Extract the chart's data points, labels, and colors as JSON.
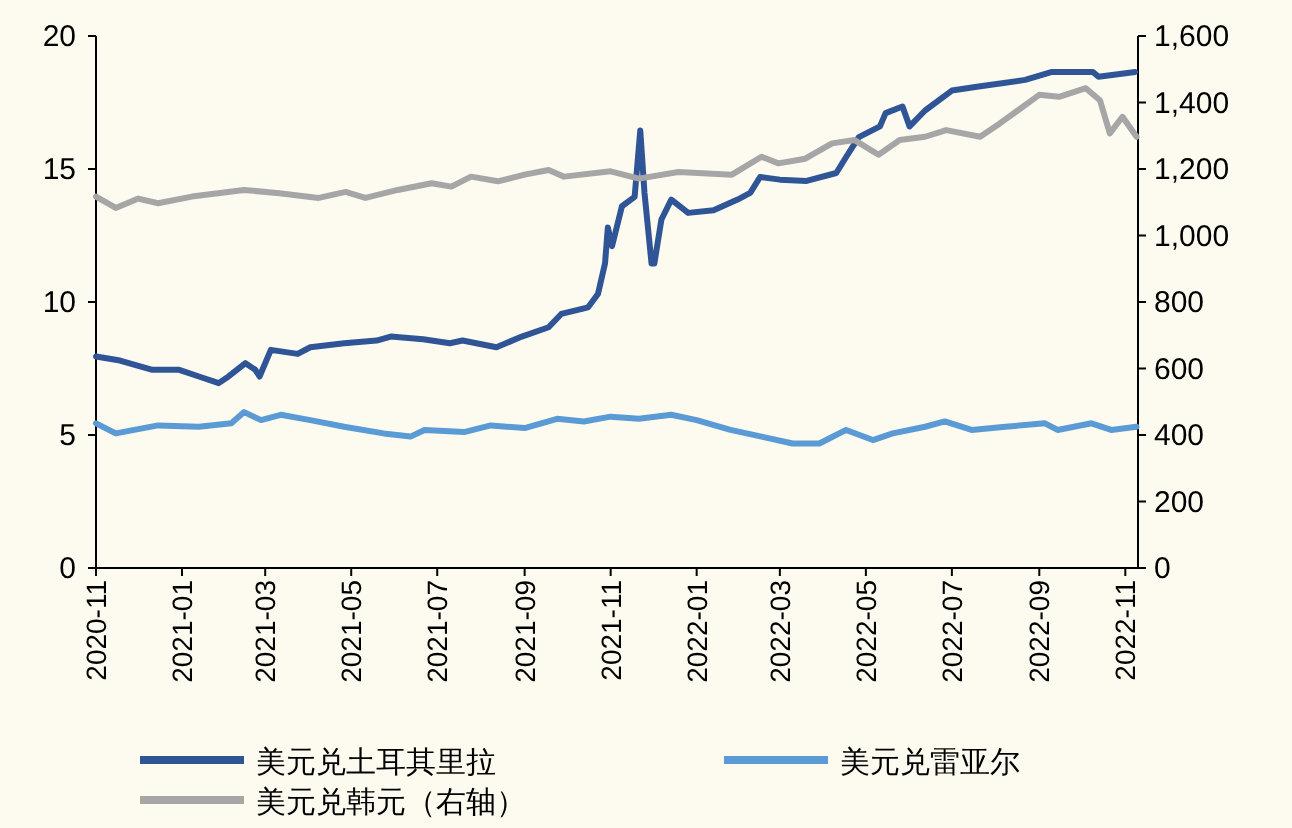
{
  "chart_data": {
    "type": "line",
    "xlim": [
      "2020-11-01",
      "2022-11-10"
    ],
    "xticks": [
      "2020-11",
      "2021-01",
      "2021-03",
      "2021-05",
      "2021-07",
      "2021-09",
      "2021-11",
      "2022-01",
      "2022-03",
      "2022-05",
      "2022-07",
      "2022-09",
      "2022-11"
    ],
    "ylim": [
      0,
      20
    ],
    "yticks": [
      0,
      5,
      10,
      15,
      20
    ],
    "y2lim": [
      0,
      1600
    ],
    "y2ticks": [
      0,
      200,
      400,
      600,
      800,
      {
        "value": 1000,
        "label": "1,000"
      },
      {
        "value": 1200,
        "label": "1,200"
      },
      {
        "value": 1400,
        "label": "1,400"
      },
      {
        "value": 1600,
        "label": "1,600"
      }
    ],
    "legend": "bottom",
    "series": [
      {
        "name": "美元兑土耳其里拉",
        "color": "#2f5597",
        "x": [
          "2020-11-01",
          "2020-11-18",
          "2020-12-11",
          "2020-12-30",
          "2021-01-13",
          "2021-01-27",
          "2021-02-03",
          "2021-02-15",
          "2021-02-22",
          "2021-02-25",
          "2021-03-05",
          "2021-03-24",
          "2021-04-02",
          "2021-04-26",
          "2021-05-19",
          "2021-05-29",
          "2021-06-21",
          "2021-07-10",
          "2021-07-19",
          "2021-08-12",
          "2021-08-30",
          "2021-09-18",
          "2021-09-27",
          "2021-10-16",
          "2021-10-23",
          "2021-10-28",
          "2021-10-30",
          "2021-11-02",
          "2021-11-09",
          "2021-11-18",
          "2021-11-22",
          "2021-11-25",
          "2021-11-30",
          "2021-12-02",
          "2021-12-07",
          "2021-12-14",
          "2021-12-26",
          "2022-01-13",
          "2022-01-30",
          "2022-02-08",
          "2022-02-15",
          "2022-03-01",
          "2022-03-20",
          "2022-04-10",
          "2022-04-17",
          "2022-04-26",
          "2022-05-11",
          "2022-05-15",
          "2022-05-27",
          "2022-06-01",
          "2022-06-12",
          "2022-07-01",
          "2022-07-20",
          "2022-08-22",
          "2022-09-10",
          "2022-10-09",
          "2022-10-13",
          "2022-11-08"
        ],
        "values": [
          7.95,
          7.8,
          7.45,
          7.45,
          7.2,
          6.95,
          7.2,
          7.7,
          7.45,
          7.2,
          8.2,
          8.05,
          8.3,
          8.45,
          8.55,
          8.7,
          8.6,
          8.45,
          8.55,
          8.3,
          8.7,
          9.05,
          9.55,
          9.8,
          10.3,
          11.45,
          12.8,
          12.1,
          13.6,
          13.95,
          16.45,
          14.1,
          11.45,
          11.45,
          13.1,
          13.85,
          13.35,
          13.45,
          13.85,
          14.1,
          14.7,
          14.6,
          14.55,
          14.85,
          15.45,
          16.2,
          16.6,
          17.1,
          17.35,
          16.6,
          17.2,
          17.95,
          18.1,
          18.35,
          18.65,
          18.65,
          18.47,
          18.65
        ]
      },
      {
        "name": "美元兑雷亚尔",
        "color": "#5b9bd5",
        "x": [
          "2020-11-01",
          "2020-11-15",
          "2020-12-15",
          "2021-01-13",
          "2021-02-05",
          "2021-02-14",
          "2021-02-26",
          "2021-03-12",
          "2021-04-02",
          "2021-04-26",
          "2021-05-24",
          "2021-06-12",
          "2021-06-22",
          "2021-07-20",
          "2021-08-08",
          "2021-09-01",
          "2021-09-24",
          "2021-10-13",
          "2021-11-01",
          "2021-11-21",
          "2021-12-14",
          "2022-01-01",
          "2022-01-25",
          "2022-02-16",
          "2022-03-10",
          "2022-03-29",
          "2022-04-17",
          "2022-05-06",
          "2022-05-20",
          "2022-06-12",
          "2022-06-26",
          "2022-07-15",
          "2022-08-08",
          "2022-09-05",
          "2022-09-14",
          "2022-10-08",
          "2022-10-22",
          "2022-11-09"
        ],
        "values": [
          5.44,
          5.06,
          5.36,
          5.31,
          5.44,
          5.86,
          5.56,
          5.76,
          5.56,
          5.31,
          5.06,
          4.94,
          5.19,
          5.11,
          5.36,
          5.26,
          5.61,
          5.51,
          5.69,
          5.61,
          5.76,
          5.56,
          5.19,
          4.94,
          4.68,
          4.68,
          5.19,
          4.81,
          5.06,
          5.31,
          5.51,
          5.19,
          5.31,
          5.44,
          5.19,
          5.44,
          5.19,
          5.31
        ]
      },
      {
        "name": "美元兑韩元（右轴）",
        "color": "#a6a6a6",
        "axis": "y2",
        "x": [
          "2020-11-01",
          "2020-11-15",
          "2020-12-01",
          "2020-12-15",
          "2021-01-08",
          "2021-02-14",
          "2021-03-11",
          "2021-04-08",
          "2021-04-27",
          "2021-05-11",
          "2021-06-03",
          "2021-06-27",
          "2021-07-11",
          "2021-07-25",
          "2021-08-13",
          "2021-09-01",
          "2021-09-18",
          "2021-09-29",
          "2021-11-01",
          "2021-11-21",
          "2021-12-19",
          "2022-01-26",
          "2022-02-16",
          "2022-02-28",
          "2022-03-19",
          "2022-04-07",
          "2022-04-23",
          "2022-05-10",
          "2022-05-25",
          "2022-06-12",
          "2022-06-27",
          "2022-07-21",
          "2022-08-04",
          "2022-09-01",
          "2022-09-15",
          "2022-10-04",
          "2022-10-14",
          "2022-10-21",
          "2022-10-30",
          "2022-11-09"
        ],
        "values": [
          1117,
          1083,
          1111,
          1097,
          1117,
          1137,
          1127,
          1113,
          1131,
          1113,
          1137,
          1157,
          1147,
          1177,
          1163,
          1183,
          1197,
          1177,
          1193,
          1171,
          1191,
          1183,
          1237,
          1217,
          1231,
          1277,
          1287,
          1243,
          1287,
          1297,
          1317,
          1297,
          1337,
          1423,
          1417,
          1443,
          1407,
          1307,
          1357,
          1297
        ]
      }
    ]
  }
}
